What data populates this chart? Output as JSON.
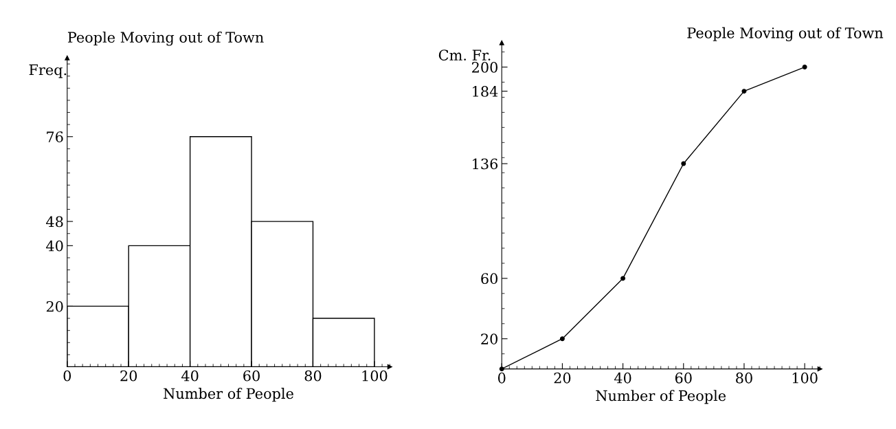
{
  "chart_data": [
    {
      "type": "histogram",
      "title": "People Moving out of Town",
      "xlabel": "Number of People",
      "ylabel": "Freq.",
      "bins": [
        0,
        20,
        40,
        60,
        80,
        100
      ],
      "values": [
        20,
        40,
        76,
        48,
        16
      ],
      "color": "#ffffff",
      "xlim": [
        0,
        105
      ],
      "ylim": [
        0,
        102
      ],
      "xticks": [
        0,
        20,
        40,
        60,
        80,
        100
      ],
      "yticks": [
        20,
        40,
        48,
        76
      ],
      "grid": false
    },
    {
      "type": "line",
      "title": "People Moving out of Town",
      "xlabel": "Number of People",
      "ylabel": "Cm. Fr.",
      "x": [
        0,
        20,
        40,
        60,
        80,
        100
      ],
      "values": [
        0,
        20,
        60,
        136,
        184,
        200
      ],
      "color": "#000000",
      "marker": "circle",
      "xlim": [
        0,
        105
      ],
      "ylim": [
        0,
        216
      ],
      "xticks": [
        0,
        20,
        40,
        60,
        80,
        100
      ],
      "yticks": [
        20,
        60,
        136,
        184,
        200
      ],
      "grid": false
    }
  ]
}
